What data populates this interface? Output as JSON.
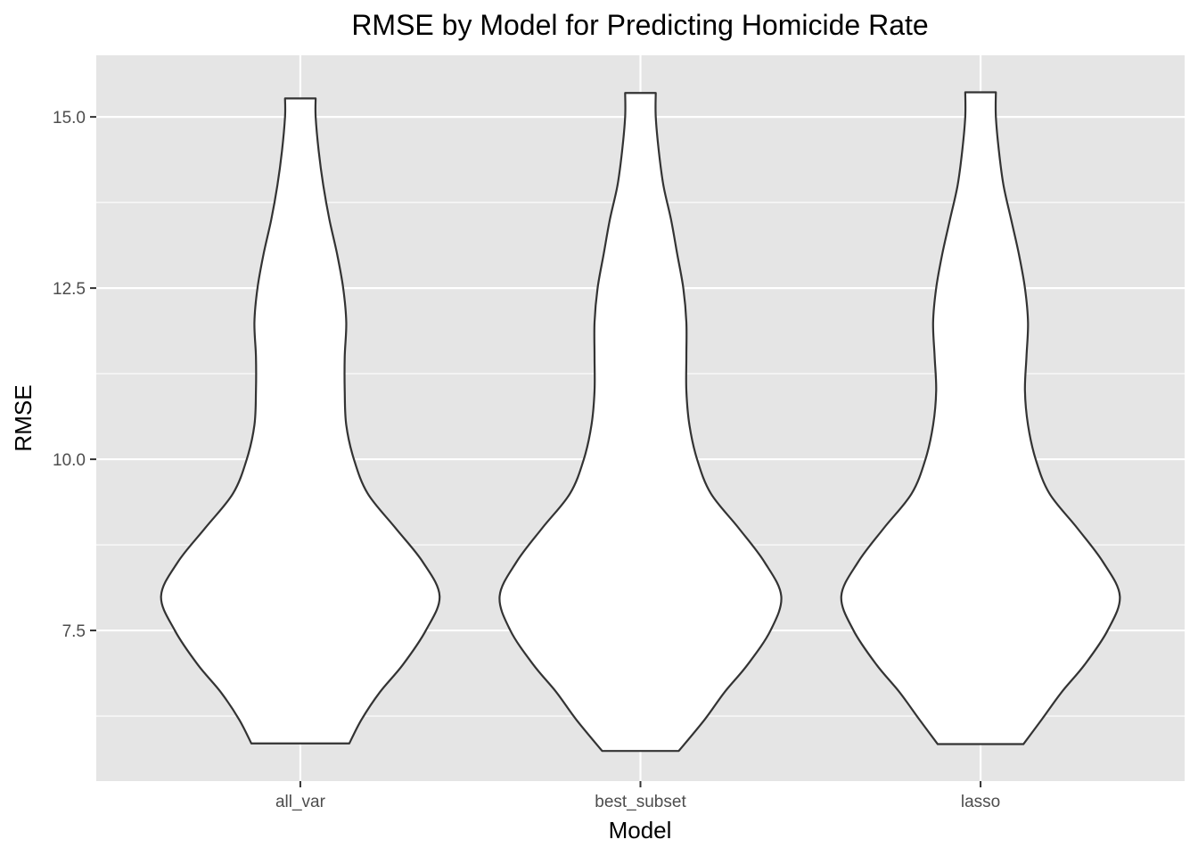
{
  "chart_data": {
    "type": "violin",
    "title": "RMSE by Model for Predicting Homicide Rate",
    "xlabel": "Model",
    "ylabel": "RMSE",
    "categories": [
      "all_var",
      "best_subset",
      "lasso"
    ],
    "ylim": [
      5.3,
      15.9
    ],
    "yticks": [
      7.5,
      10.0,
      12.5,
      15.0
    ],
    "ytick_labels": [
      "7.5",
      "10.0",
      "12.5",
      "15.0"
    ],
    "grid": true,
    "legend": "none",
    "colors": {
      "panel_background": "#e5e5e5",
      "grid": "#ffffff",
      "violin_fill": "#ffffff",
      "violin_outline": "#333333"
    },
    "series": [
      {
        "category": "all_var",
        "min": 5.85,
        "max": 15.27,
        "density_profile": [
          [
            5.85,
            0.32
          ],
          [
            6.2,
            0.4
          ],
          [
            6.6,
            0.52
          ],
          [
            7.0,
            0.67
          ],
          [
            7.5,
            0.82
          ],
          [
            8.0,
            0.91
          ],
          [
            8.5,
            0.8
          ],
          [
            9.0,
            0.62
          ],
          [
            9.5,
            0.44
          ],
          [
            10.0,
            0.35
          ],
          [
            10.5,
            0.3
          ],
          [
            11.0,
            0.29
          ],
          [
            11.5,
            0.29
          ],
          [
            12.0,
            0.3
          ],
          [
            12.5,
            0.28
          ],
          [
            13.0,
            0.24
          ],
          [
            13.5,
            0.19
          ],
          [
            14.0,
            0.15
          ],
          [
            14.5,
            0.12
          ],
          [
            15.0,
            0.1
          ],
          [
            15.27,
            0.1
          ]
        ]
      },
      {
        "category": "best_subset",
        "min": 5.74,
        "max": 15.35,
        "density_profile": [
          [
            5.74,
            0.25
          ],
          [
            6.2,
            0.42
          ],
          [
            6.6,
            0.55
          ],
          [
            7.0,
            0.7
          ],
          [
            7.5,
            0.85
          ],
          [
            8.0,
            0.92
          ],
          [
            8.5,
            0.81
          ],
          [
            9.0,
            0.64
          ],
          [
            9.5,
            0.46
          ],
          [
            10.0,
            0.37
          ],
          [
            10.5,
            0.32
          ],
          [
            11.0,
            0.3
          ],
          [
            11.5,
            0.3
          ],
          [
            12.0,
            0.3
          ],
          [
            12.5,
            0.28
          ],
          [
            13.0,
            0.24
          ],
          [
            13.5,
            0.2
          ],
          [
            14.0,
            0.15
          ],
          [
            14.5,
            0.12
          ],
          [
            15.0,
            0.1
          ],
          [
            15.35,
            0.1
          ]
        ]
      },
      {
        "category": "lasso",
        "min": 5.84,
        "max": 15.36,
        "density_profile": [
          [
            5.84,
            0.28
          ],
          [
            6.2,
            0.4
          ],
          [
            6.6,
            0.53
          ],
          [
            7.0,
            0.68
          ],
          [
            7.5,
            0.83
          ],
          [
            8.0,
            0.91
          ],
          [
            8.5,
            0.8
          ],
          [
            9.0,
            0.63
          ],
          [
            9.5,
            0.45
          ],
          [
            10.0,
            0.36
          ],
          [
            10.5,
            0.31
          ],
          [
            11.0,
            0.29
          ],
          [
            11.5,
            0.3
          ],
          [
            12.0,
            0.31
          ],
          [
            12.5,
            0.29
          ],
          [
            13.0,
            0.25
          ],
          [
            13.5,
            0.2
          ],
          [
            14.0,
            0.15
          ],
          [
            14.5,
            0.12
          ],
          [
            15.0,
            0.1
          ],
          [
            15.36,
            0.1
          ]
        ]
      }
    ]
  }
}
